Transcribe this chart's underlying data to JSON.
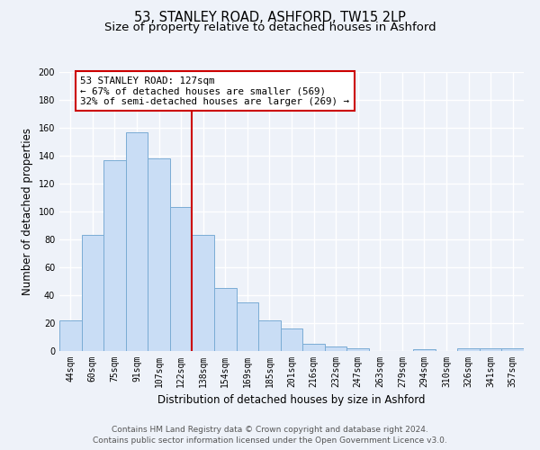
{
  "title": "53, STANLEY ROAD, ASHFORD, TW15 2LP",
  "subtitle": "Size of property relative to detached houses in Ashford",
  "xlabel": "Distribution of detached houses by size in Ashford",
  "ylabel": "Number of detached properties",
  "bin_labels": [
    "44sqm",
    "60sqm",
    "75sqm",
    "91sqm",
    "107sqm",
    "122sqm",
    "138sqm",
    "154sqm",
    "169sqm",
    "185sqm",
    "201sqm",
    "216sqm",
    "232sqm",
    "247sqm",
    "263sqm",
    "279sqm",
    "294sqm",
    "310sqm",
    "326sqm",
    "341sqm",
    "357sqm"
  ],
  "bar_heights": [
    22,
    83,
    137,
    157,
    138,
    103,
    83,
    45,
    35,
    22,
    16,
    5,
    3,
    2,
    0,
    0,
    1,
    0,
    2,
    2,
    2
  ],
  "bar_color": "#c9ddf5",
  "bar_edge_color": "#7aacd4",
  "vline_index": 5.5,
  "annotation_title": "53 STANLEY ROAD: 127sqm",
  "annotation_line1": "← 67% of detached houses are smaller (569)",
  "annotation_line2": "32% of semi-detached houses are larger (269) →",
  "annotation_box_color": "#ffffff",
  "annotation_box_edge": "#cc0000",
  "vline_color": "#cc0000",
  "ylim": [
    0,
    200
  ],
  "yticks": [
    0,
    20,
    40,
    60,
    80,
    100,
    120,
    140,
    160,
    180,
    200
  ],
  "footer_line1": "Contains HM Land Registry data © Crown copyright and database right 2024.",
  "footer_line2": "Contains public sector information licensed under the Open Government Licence v3.0.",
  "bg_color": "#eef2f9",
  "grid_color": "#ffffff",
  "title_fontsize": 10.5,
  "subtitle_fontsize": 9.5,
  "axis_label_fontsize": 8.5,
  "tick_fontsize": 7,
  "footer_fontsize": 6.5,
  "annotation_fontsize": 7.8
}
